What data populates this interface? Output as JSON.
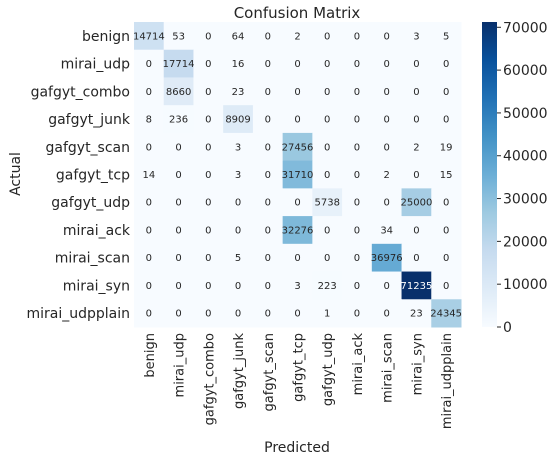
{
  "chart_data": {
    "type": "heatmap",
    "title": "Confusion Matrix",
    "xlabel": "Predicted",
    "ylabel": "Actual",
    "row_labels": [
      "benign",
      "mirai_udp",
      "gafgyt_combo",
      "gafgyt_junk",
      "gafgyt_scan",
      "gafgyt_tcp",
      "gafgyt_udp",
      "mirai_ack",
      "mirai_scan",
      "mirai_syn",
      "mirai_udpplain"
    ],
    "col_labels": [
      "benign",
      "mirai_udp",
      "gafgyt_combo",
      "gafgyt_junk",
      "gafgyt_scan",
      "gafgyt_tcp",
      "gafgyt_udp",
      "mirai_ack",
      "mirai_scan",
      "mirai_syn",
      "mirai_udpplain"
    ],
    "matrix": [
      [
        14714,
        53,
        0,
        64,
        0,
        2,
        0,
        0,
        0,
        3,
        5
      ],
      [
        0,
        17714,
        0,
        16,
        0,
        0,
        0,
        0,
        0,
        0,
        0
      ],
      [
        0,
        8660,
        0,
        23,
        0,
        0,
        0,
        0,
        0,
        0,
        0
      ],
      [
        8,
        236,
        0,
        8909,
        0,
        0,
        0,
        0,
        0,
        0,
        0
      ],
      [
        0,
        0,
        0,
        3,
        0,
        27456,
        0,
        0,
        0,
        2,
        19
      ],
      [
        14,
        0,
        0,
        3,
        0,
        31710,
        0,
        0,
        2,
        0,
        15
      ],
      [
        0,
        0,
        0,
        0,
        0,
        0,
        5738,
        0,
        0,
        25000,
        0
      ],
      [
        0,
        0,
        0,
        0,
        0,
        32276,
        0,
        0,
        34,
        0,
        0
      ],
      [
        0,
        0,
        0,
        5,
        0,
        0,
        0,
        0,
        36976,
        0,
        0
      ],
      [
        0,
        0,
        0,
        0,
        0,
        3,
        223,
        0,
        0,
        71235,
        0
      ],
      [
        0,
        0,
        0,
        0,
        0,
        0,
        1,
        0,
        0,
        23,
        24345
      ]
    ],
    "colorbar": {
      "colormap": "Blues",
      "range": [
        0,
        71235
      ],
      "ticks": [
        0,
        10000,
        20000,
        30000,
        40000,
        50000,
        60000,
        70000
      ]
    }
  }
}
